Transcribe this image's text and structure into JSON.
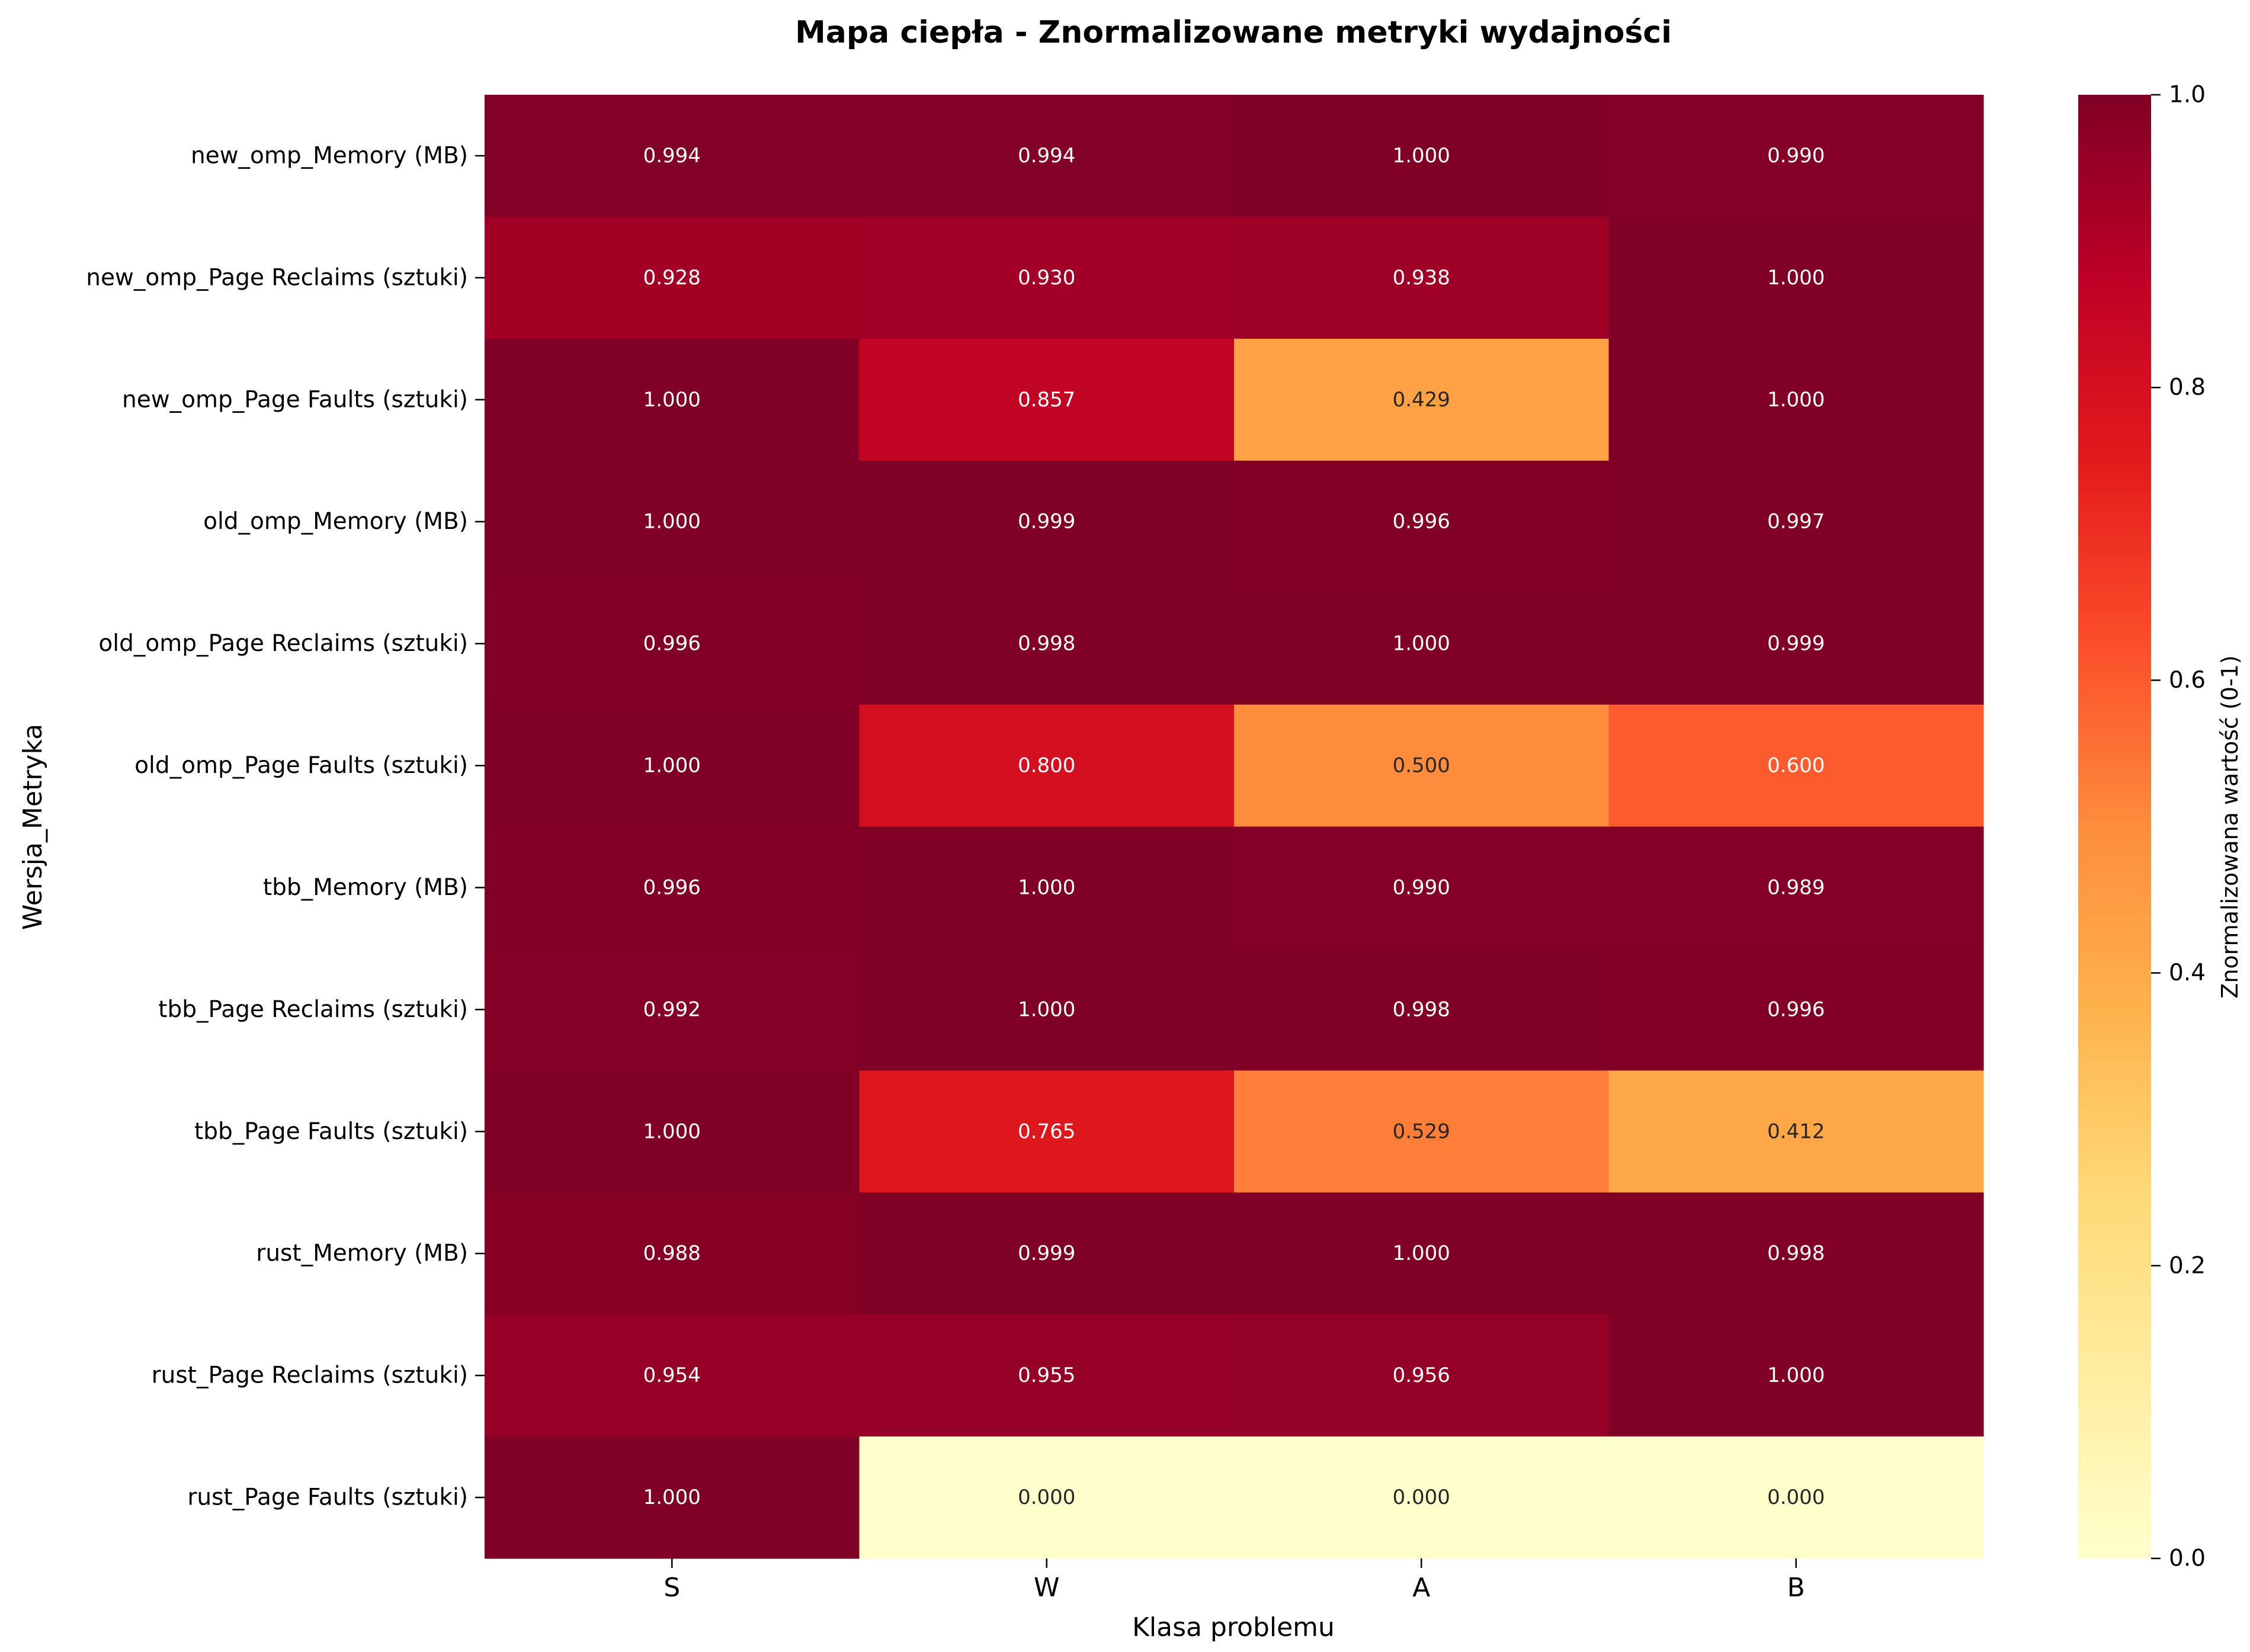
{
  "chart_data": {
    "type": "heatmap",
    "title": "Mapa ciepła - Znormalizowane metryki wydajności",
    "xlabel": "Klasa problemu",
    "ylabel": "Wersja_Metryka",
    "categories": [
      "S",
      "W",
      "A",
      "B"
    ],
    "rows": [
      "new_omp_Memory (MB)",
      "new_omp_Page Reclaims (sztuki)",
      "new_omp_Page Faults (sztuki)",
      "old_omp_Memory (MB)",
      "old_omp_Page Reclaims (sztuki)",
      "old_omp_Page Faults (sztuki)",
      "tbb_Memory (MB)",
      "tbb_Page Reclaims (sztuki)",
      "tbb_Page Faults (sztuki)",
      "rust_Memory (MB)",
      "rust_Page Reclaims (sztuki)",
      "rust_Page Faults (sztuki)"
    ],
    "values": [
      [
        0.994,
        0.994,
        1.0,
        0.99
      ],
      [
        0.928,
        0.93,
        0.938,
        1.0
      ],
      [
        1.0,
        0.857,
        0.429,
        1.0
      ],
      [
        1.0,
        0.999,
        0.996,
        0.997
      ],
      [
        0.996,
        0.998,
        1.0,
        0.999
      ],
      [
        1.0,
        0.8,
        0.5,
        0.6
      ],
      [
        0.996,
        1.0,
        0.99,
        0.989
      ],
      [
        0.992,
        1.0,
        0.998,
        0.996
      ],
      [
        1.0,
        0.765,
        0.529,
        0.412
      ],
      [
        0.988,
        0.999,
        1.0,
        0.998
      ],
      [
        0.954,
        0.955,
        0.956,
        1.0
      ],
      [
        1.0,
        0.0,
        0.0,
        0.0
      ]
    ],
    "value_format": "3 decimals",
    "colorbar": {
      "label": "Znormalizowana wartość (0-1)",
      "range": [
        0,
        1
      ],
      "ticks": [
        "0.0",
        "0.2",
        "0.4",
        "0.6",
        "0.8",
        "1.0"
      ],
      "colormap": "YlOrRd",
      "colors": [
        "#ffffcc",
        "#ffeda0",
        "#fed976",
        "#feb24c",
        "#fd8d3c",
        "#fc4e2a",
        "#e31a1c",
        "#bd0026",
        "#800026"
      ]
    },
    "annotation_text_dark": "#262626",
    "annotation_text_light": "#ffffff"
  }
}
